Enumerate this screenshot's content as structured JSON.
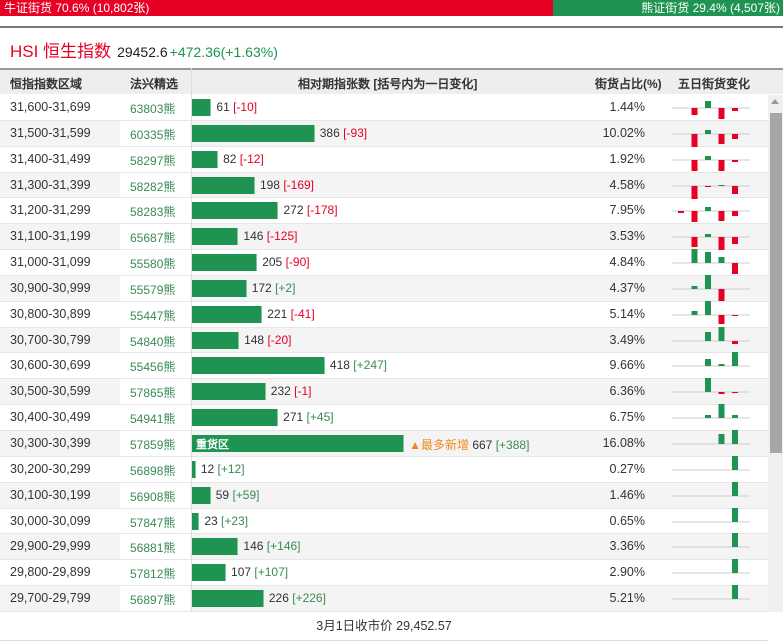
{
  "ratio": {
    "bull_label": "牛证街货 70.6% (10,802张)",
    "bull_pct": 70.6,
    "bear_label": "熊证街货 29.4% (4,507张)",
    "bear_pct": 29.4
  },
  "index": {
    "name": "HSI 恒生指数",
    "price": "29452.6",
    "change": "+472.36(+1.63%)"
  },
  "headers": {
    "range": "恒指指数区域",
    "pick": "法兴精选",
    "change": "相对期指张数 [括号内为一日变化]",
    "share": "街货占比(%)",
    "five_day": "五日街货变化"
  },
  "heavy_tag": "重货区",
  "most_new": "▲最多新增",
  "colors": {
    "bull": "#e60024",
    "bear": "#1f9452"
  },
  "rows": [
    {
      "range": "31,600-31,699",
      "code": "63803熊",
      "qty": 61,
      "qty_text": "61",
      "delta": "[-10]",
      "share": "1.44%",
      "five": [
        0,
        -7,
        7,
        -11,
        -3
      ]
    },
    {
      "range": "31,500-31,599",
      "code": "60335熊",
      "qty": 386,
      "qty_text": "386",
      "delta": "[-93]",
      "share": "10.02%",
      "five": [
        0,
        -13,
        4,
        -10,
        -5
      ]
    },
    {
      "range": "31,400-31,499",
      "code": "58297熊",
      "qty": 82,
      "qty_text": "82",
      "delta": "[-12]",
      "share": "1.92%",
      "five": [
        0,
        -11,
        4,
        -11,
        -2
      ]
    },
    {
      "range": "31,300-31,399",
      "code": "58282熊",
      "qty": 198,
      "qty_text": "198",
      "delta": "[-169]",
      "share": "4.58%",
      "five": [
        0,
        -13,
        -1,
        1,
        -8
      ]
    },
    {
      "range": "31,200-31,299",
      "code": "58283熊",
      "qty": 272,
      "qty_text": "272",
      "delta": "[-178]",
      "share": "7.95%",
      "five": [
        -2,
        -11,
        4,
        -10,
        -5
      ]
    },
    {
      "range": "31,100-31,199",
      "code": "65687熊",
      "qty": 146,
      "qty_text": "146",
      "delta": "[-125]",
      "share": "3.53%",
      "five": [
        0,
        -10,
        3,
        -13,
        -7
      ]
    },
    {
      "range": "31,000-31,099",
      "code": "55580熊",
      "qty": 205,
      "qty_text": "205",
      "delta": "[-90]",
      "share": "4.84%",
      "five": [
        0,
        14,
        11,
        6,
        -11
      ]
    },
    {
      "range": "30,900-30,999",
      "code": "55579熊",
      "qty": 172,
      "qty_text": "172",
      "delta": "[+2]",
      "share": "4.37%",
      "five": [
        0,
        3,
        14,
        -12,
        0
      ]
    },
    {
      "range": "30,800-30,899",
      "code": "55447熊",
      "qty": 221,
      "qty_text": "221",
      "delta": "[-41]",
      "share": "5.14%",
      "five": [
        0,
        4,
        14,
        -9,
        -1
      ]
    },
    {
      "range": "30,700-30,799",
      "code": "54840熊",
      "qty": 148,
      "qty_text": "148",
      "delta": "[-20]",
      "share": "3.49%",
      "five": [
        0,
        0,
        9,
        14,
        -3
      ]
    },
    {
      "range": "30,600-30,699",
      "code": "55456熊",
      "qty": 418,
      "qty_text": "418",
      "delta": "[+247]",
      "share": "9.66%",
      "five": [
        0,
        0,
        7,
        2,
        14
      ]
    },
    {
      "range": "30,500-30,599",
      "code": "57865熊",
      "qty": 232,
      "qty_text": "232",
      "delta": "[-1]",
      "share": "6.36%",
      "five": [
        0,
        0,
        14,
        -2,
        -1
      ]
    },
    {
      "range": "30,400-30,499",
      "code": "54941熊",
      "qty": 271,
      "qty_text": "271",
      "delta": "[+45]",
      "share": "6.75%",
      "five": [
        0,
        0,
        3,
        14,
        3
      ]
    },
    {
      "range": "30,300-30,399",
      "code": "57859熊",
      "qty": 667,
      "qty_text": "667",
      "delta": "[+388]",
      "share": "16.08%",
      "five": [
        0,
        0,
        0,
        10,
        14
      ],
      "heavy": true
    },
    {
      "range": "30,200-30,299",
      "code": "56898熊",
      "qty": 12,
      "qty_text": "12",
      "delta": "[+12]",
      "share": "0.27%",
      "five": [
        0,
        0,
        0,
        0,
        14
      ]
    },
    {
      "range": "30,100-30,199",
      "code": "56908熊",
      "qty": 59,
      "qty_text": "59",
      "delta": "[+59]",
      "share": "1.46%",
      "five": [
        0,
        0,
        0,
        0,
        14
      ]
    },
    {
      "range": "30,000-30,099",
      "code": "57847熊",
      "qty": 23,
      "qty_text": "23",
      "delta": "[+23]",
      "share": "0.65%",
      "five": [
        0,
        0,
        0,
        0,
        14
      ]
    },
    {
      "range": "29,900-29,999",
      "code": "56881熊",
      "qty": 146,
      "qty_text": "146",
      "delta": "[+146]",
      "share": "3.36%",
      "five": [
        0,
        0,
        0,
        0,
        14
      ]
    },
    {
      "range": "29,800-29,899",
      "code": "57812熊",
      "qty": 107,
      "qty_text": "107",
      "delta": "[+107]",
      "share": "2.90%",
      "five": [
        0,
        0,
        0,
        0,
        14
      ]
    },
    {
      "range": "29,700-29,799",
      "code": "56897熊",
      "qty": 226,
      "qty_text": "226",
      "delta": "[+226]",
      "share": "5.21%",
      "five": [
        0,
        0,
        0,
        0,
        14
      ]
    }
  ],
  "footer": "3月1日收市价 29,452.57"
}
